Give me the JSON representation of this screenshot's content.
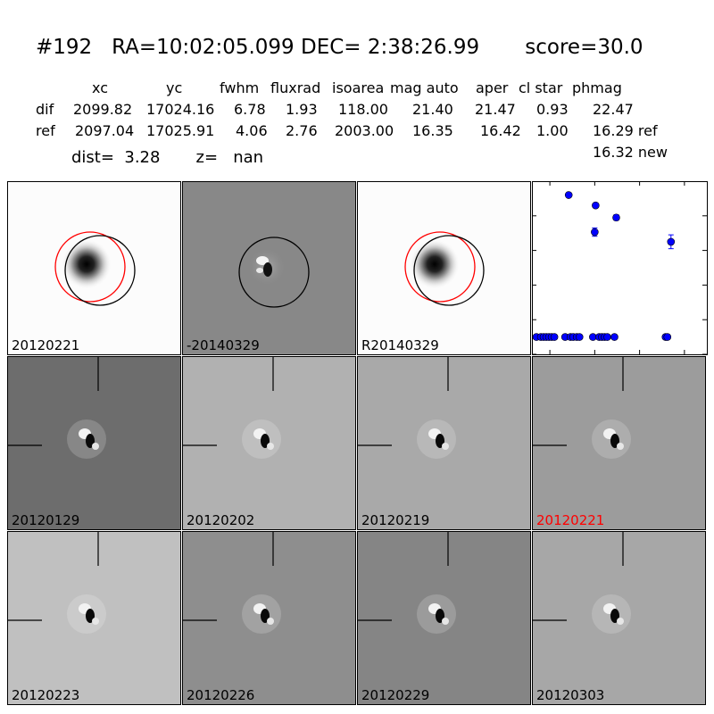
{
  "title": "#192   RA=10:02:05.099 DEC= 2:38:26.99       score=30.0",
  "table": {
    "headers": [
      "xc",
      "yc",
      "fwhm",
      "fluxrad",
      "isoarea",
      "mag auto",
      "aper",
      "cl star",
      "phmag"
    ],
    "rows": [
      {
        "label": "dif",
        "values": [
          "2099.82",
          "17024.16",
          "6.78",
          "1.93",
          "118.00",
          "21.40",
          "21.47",
          "0.93",
          "22.47"
        ]
      },
      {
        "label": "ref",
        "values": [
          "2097.04",
          "17025.91",
          "4.06",
          "2.76",
          "2003.00",
          "16.35",
          "16.42",
          "1.00",
          "16.29 ref"
        ]
      }
    ],
    "extra": "16.32 new"
  },
  "dist_line": "dist=  3.28       z=   nan",
  "colors": {
    "highlight": "#ff0000",
    "points": "#0000ff",
    "red_circle": "#ff0000"
  },
  "stamps_top": [
    {
      "label": "20120221",
      "bg": "#fcfcfc",
      "kind": "ref"
    },
    {
      "label": "-20140329",
      "bg": "#888888",
      "kind": "diff"
    },
    {
      "label": "R20140329",
      "bg": "#fcfcfc",
      "kind": "ref"
    }
  ],
  "stamps_grid": [
    {
      "label": "20120129",
      "bg": "#6d6d6d",
      "highlight": false
    },
    {
      "label": "20120202",
      "bg": "#b1b1b1",
      "highlight": false
    },
    {
      "label": "20120219",
      "bg": "#a9a9a9",
      "highlight": false
    },
    {
      "label": "20120221",
      "bg": "#9c9c9c",
      "highlight": true
    },
    {
      "label": "20120223",
      "bg": "#c0c0c0",
      "highlight": false
    },
    {
      "label": "20120226",
      "bg": "#8e8e8e",
      "highlight": false
    },
    {
      "label": "20120229",
      "bg": "#858585",
      "highlight": false
    },
    {
      "label": "20120303",
      "bg": "#a7a7a7",
      "highlight": false
    }
  ],
  "chart_data": {
    "type": "scatter",
    "xlim": [
      -70,
      125
    ],
    "ylim": [
      26,
      21
    ],
    "xticks": [
      "-50",
      "0",
      "50",
      "100"
    ],
    "yticks": [
      "21",
      "22",
      "23",
      "24",
      "25",
      "26"
    ],
    "points": [
      {
        "x": -65,
        "y": 25.5
      },
      {
        "x": -60,
        "y": 25.5
      },
      {
        "x": -57,
        "y": 25.5
      },
      {
        "x": -54,
        "y": 25.5
      },
      {
        "x": -51,
        "y": 25.5
      },
      {
        "x": -48,
        "y": 25.5
      },
      {
        "x": -45,
        "y": 25.5
      },
      {
        "x": -33,
        "y": 25.5
      },
      {
        "x": -29,
        "y": 21.4
      },
      {
        "x": -27,
        "y": 25.5
      },
      {
        "x": -24,
        "y": 25.5
      },
      {
        "x": -20,
        "y": 25.5
      },
      {
        "x": -17,
        "y": 25.5
      },
      {
        "x": -2,
        "y": 25.5
      },
      {
        "x": 0,
        "y": 22.47,
        "err": 0.12
      },
      {
        "x": 1,
        "y": 21.7
      },
      {
        "x": 5,
        "y": 25.5
      },
      {
        "x": 8,
        "y": 25.5
      },
      {
        "x": 11,
        "y": 25.5
      },
      {
        "x": 14,
        "y": 25.5
      },
      {
        "x": 22,
        "y": 25.5
      },
      {
        "x": 24,
        "y": 22.05,
        "err": 0.08
      },
      {
        "x": 79,
        "y": 25.5
      },
      {
        "x": 81,
        "y": 25.5
      },
      {
        "x": 85,
        "y": 22.75,
        "err": 0.2
      }
    ]
  }
}
